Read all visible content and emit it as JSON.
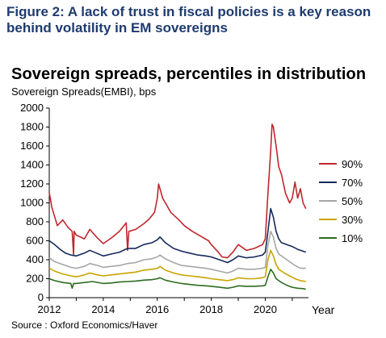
{
  "figure_title": "Figure 2: A lack of trust in fiscal policies is a key reason behind volatility in EM sovereigns",
  "source": "Source : Oxford Economics/Haver",
  "chart_data": {
    "type": "line",
    "title": "Sovereign spreads, percentiles in distribution",
    "ylabel": "Sovereign Spreads(EMBI), bps",
    "xlabel": "Year",
    "xlim": [
      2012,
      2021.6
    ],
    "ylim": [
      0,
      2000
    ],
    "xticks": [
      2012,
      2014,
      2016,
      2018,
      2020
    ],
    "yticks": [
      0,
      200,
      400,
      600,
      800,
      1000,
      1200,
      1400,
      1600,
      1800,
      2000
    ],
    "grid": false,
    "legend_position": "right",
    "series": [
      {
        "name": "90%",
        "color": "#c0272d",
        "x": [
          2012.0,
          2012.1,
          2012.3,
          2012.5,
          2012.7,
          2012.85,
          2012.9,
          2012.92,
          2013.0,
          2013.3,
          2013.5,
          2013.75,
          2014.0,
          2014.3,
          2014.6,
          2014.85,
          2014.9,
          2014.95,
          2015.2,
          2015.5,
          2015.7,
          2015.9,
          2016.0,
          2016.05,
          2016.1,
          2016.2,
          2016.5,
          2016.8,
          2017.0,
          2017.3,
          2017.6,
          2017.9,
          2018.0,
          2018.2,
          2018.4,
          2018.6,
          2018.8,
          2019.0,
          2019.3,
          2019.6,
          2019.9,
          2020.0,
          2020.1,
          2020.2,
          2020.25,
          2020.3,
          2020.4,
          2020.5,
          2020.6,
          2020.75,
          2020.9,
          2021.0,
          2021.1,
          2021.2,
          2021.3,
          2021.4,
          2021.5
        ],
        "values": [
          1110,
          950,
          760,
          820,
          740,
          700,
          450,
          700,
          660,
          620,
          720,
          640,
          570,
          630,
          700,
          790,
          500,
          700,
          720,
          780,
          830,
          900,
          1050,
          1200,
          1150,
          1050,
          900,
          820,
          760,
          700,
          650,
          600,
          560,
          500,
          430,
          420,
          480,
          560,
          500,
          520,
          560,
          620,
          1100,
          1550,
          1830,
          1800,
          1600,
          1380,
          1300,
          1100,
          1000,
          1050,
          1220,
          1050,
          1150,
          1000,
          940
        ]
      },
      {
        "name": "70%",
        "color": "#14295c",
        "x": [
          2012.0,
          2012.2,
          2012.4,
          2012.6,
          2012.8,
          2013.0,
          2013.3,
          2013.5,
          2013.75,
          2014.0,
          2014.3,
          2014.6,
          2014.9,
          2015.2,
          2015.5,
          2015.8,
          2016.0,
          2016.1,
          2016.3,
          2016.6,
          2016.9,
          2017.2,
          2017.5,
          2017.8,
          2018.0,
          2018.3,
          2018.6,
          2018.8,
          2019.0,
          2019.3,
          2019.6,
          2019.9,
          2020.0,
          2020.1,
          2020.2,
          2020.3,
          2020.4,
          2020.5,
          2020.6,
          2020.8,
          2021.0,
          2021.2,
          2021.4,
          2021.5
        ],
        "values": [
          600,
          560,
          510,
          470,
          450,
          440,
          470,
          500,
          470,
          440,
          460,
          480,
          520,
          520,
          560,
          580,
          610,
          640,
          580,
          520,
          490,
          470,
          450,
          440,
          430,
          400,
          370,
          400,
          440,
          420,
          430,
          450,
          480,
          700,
          940,
          850,
          700,
          620,
          580,
          560,
          540,
          510,
          490,
          480
        ]
      },
      {
        "name": "50%",
        "color": "#a6a6a6",
        "x": [
          2012.0,
          2012.2,
          2012.5,
          2012.8,
          2013.0,
          2013.3,
          2013.5,
          2013.8,
          2014.0,
          2014.3,
          2014.6,
          2014.9,
          2015.2,
          2015.5,
          2015.8,
          2016.0,
          2016.1,
          2016.3,
          2016.6,
          2016.9,
          2017.2,
          2017.5,
          2017.8,
          2018.0,
          2018.3,
          2018.6,
          2018.8,
          2019.0,
          2019.3,
          2019.6,
          2019.9,
          2020.0,
          2020.1,
          2020.2,
          2020.3,
          2020.4,
          2020.5,
          2020.7,
          2020.9,
          2021.1,
          2021.3,
          2021.5
        ],
        "values": [
          420,
          380,
          350,
          320,
          310,
          330,
          360,
          340,
          320,
          330,
          340,
          360,
          370,
          400,
          410,
          430,
          450,
          410,
          370,
          340,
          330,
          320,
          310,
          300,
          280,
          260,
          280,
          310,
          300,
          300,
          310,
          320,
          550,
          700,
          640,
          520,
          460,
          420,
          380,
          340,
          310,
          310
        ]
      },
      {
        "name": "30%",
        "color": "#c9a400",
        "x": [
          2012.0,
          2012.2,
          2012.5,
          2012.8,
          2013.0,
          2013.3,
          2013.5,
          2013.8,
          2014.0,
          2014.3,
          2014.6,
          2014.9,
          2015.2,
          2015.5,
          2015.8,
          2016.0,
          2016.1,
          2016.3,
          2016.6,
          2016.9,
          2017.2,
          2017.5,
          2017.8,
          2018.0,
          2018.3,
          2018.6,
          2018.8,
          2019.0,
          2019.3,
          2019.6,
          2019.9,
          2020.0,
          2020.1,
          2020.2,
          2020.3,
          2020.4,
          2020.5,
          2020.7,
          2020.9,
          2021.1,
          2021.3,
          2021.5
        ],
        "values": [
          310,
          280,
          250,
          230,
          220,
          240,
          260,
          240,
          230,
          240,
          250,
          260,
          270,
          290,
          300,
          310,
          330,
          290,
          260,
          240,
          230,
          220,
          210,
          200,
          190,
          180,
          190,
          210,
          200,
          200,
          210,
          220,
          400,
          500,
          440,
          350,
          300,
          260,
          230,
          200,
          180,
          170
        ]
      },
      {
        "name": "10%",
        "color": "#2e6b1f",
        "x": [
          2012.0,
          2012.2,
          2012.5,
          2012.8,
          2012.85,
          2012.9,
          2013.0,
          2013.3,
          2013.6,
          2014.0,
          2014.3,
          2014.6,
          2014.9,
          2015.2,
          2015.5,
          2015.8,
          2016.0,
          2016.1,
          2016.3,
          2016.6,
          2016.9,
          2017.2,
          2017.5,
          2017.8,
          2018.0,
          2018.3,
          2018.6,
          2018.8,
          2019.0,
          2019.3,
          2019.6,
          2019.9,
          2020.0,
          2020.1,
          2020.2,
          2020.3,
          2020.4,
          2020.6,
          2020.8,
          2021.0,
          2021.2,
          2021.4,
          2021.5
        ],
        "values": [
          200,
          180,
          160,
          150,
          100,
          150,
          150,
          160,
          170,
          150,
          155,
          165,
          170,
          175,
          185,
          190,
          200,
          210,
          185,
          165,
          150,
          140,
          130,
          125,
          120,
          110,
          100,
          110,
          125,
          120,
          120,
          125,
          130,
          220,
          300,
          260,
          200,
          160,
          130,
          110,
          100,
          95,
          90
        ]
      }
    ]
  }
}
